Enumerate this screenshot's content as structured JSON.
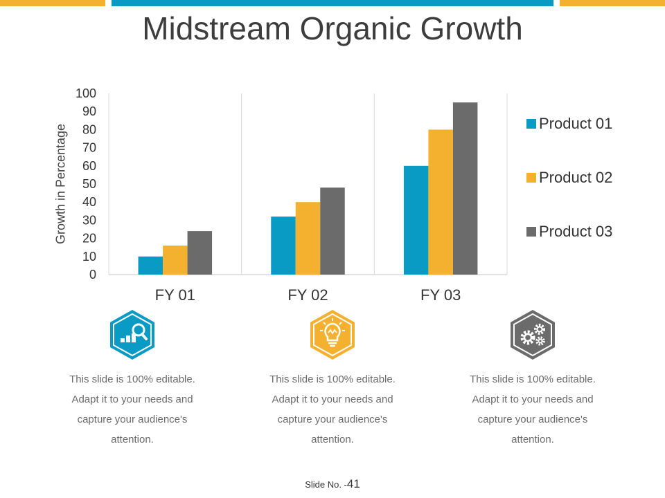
{
  "colors": {
    "blue": "#0a9bc5",
    "yellow": "#f4b12f",
    "gray": "#6b6b6b",
    "axis": "#d9d9d9"
  },
  "slide": {
    "title": "Midstream Organic Growth",
    "slide_no_label": "Slide No. -",
    "slide_no": "41"
  },
  "chart_data": {
    "type": "bar",
    "title": "",
    "xlabel": "",
    "ylabel": "Growth in Percentage",
    "ylim": [
      0,
      100
    ],
    "yticks": [
      0,
      10,
      20,
      30,
      40,
      50,
      60,
      70,
      80,
      90,
      100
    ],
    "categories": [
      "FY 01",
      "FY 02",
      "FY 03"
    ],
    "series": [
      {
        "name": "Product 01",
        "color": "#0a9bc5",
        "values": [
          10,
          32,
          60
        ]
      },
      {
        "name": "Product 02",
        "color": "#f4b12f",
        "values": [
          16,
          40,
          80
        ]
      },
      {
        "name": "Product 03",
        "color": "#6b6b6b",
        "values": [
          24,
          48,
          95
        ]
      }
    ],
    "legend": "right"
  },
  "features": [
    {
      "icon": "chart-magnifier-icon",
      "text": "This slide is 100% editable. Adapt it to your needs and capture your audience's attention."
    },
    {
      "icon": "lightbulb-icon",
      "text": "This slide is 100% editable. Adapt it to your needs and capture your audience's attention."
    },
    {
      "icon": "gears-icon",
      "text": "This slide is 100% editable. Adapt it to your needs and capture your audience's attention."
    }
  ]
}
